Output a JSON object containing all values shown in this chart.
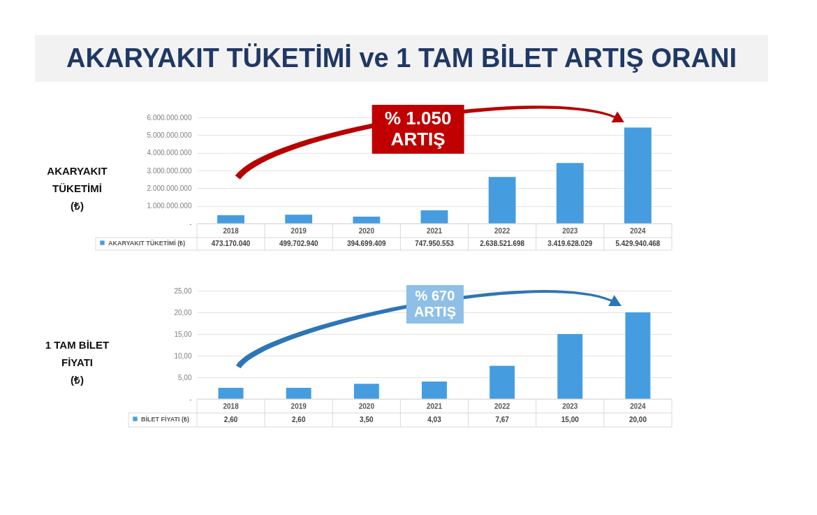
{
  "chart_data": [
    {
      "type": "bar",
      "title": "AKARYAKIT TÜKETİMİ ve 1 TAM BİLET ARTIŞ ORANI",
      "ylabel": "AKARYAKIT\nTÜKETİMİ\n(₺)",
      "categories": [
        "2018",
        "2019",
        "2020",
        "2021",
        "2022",
        "2023",
        "2024"
      ],
      "series": [
        {
          "name": "AKARYAKIT TÜKETİMİ (₺)",
          "color": "#459de0",
          "values": [
            473170040,
            499702940,
            394699409,
            747950553,
            2638521698,
            3419628029,
            5429940468
          ],
          "value_labels": [
            "473.170.040",
            "499.702.940",
            "394.699.409",
            "747.950.553",
            "2.638.521.698",
            "3.419.628.029",
            "5.429.940.468"
          ]
        }
      ],
      "ylim": [
        0,
        6000000000
      ],
      "yticks": [
        {
          "value": 0,
          "label": "-"
        },
        {
          "value": 1000000000,
          "label": "1.000.000.000"
        },
        {
          "value": 2000000000,
          "label": "2.000.000.000"
        },
        {
          "value": 3000000000,
          "label": "3.000.000.000"
        },
        {
          "value": 4000000000,
          "label": "4.000.000.000"
        },
        {
          "value": 5000000000,
          "label": "5.000.000.000"
        },
        {
          "value": 6000000000,
          "label": "6.000.000.000"
        }
      ],
      "grid": "y",
      "legend": "bottom left",
      "annotations": [
        "% 1.050\nARTIŞ"
      ]
    },
    {
      "type": "bar",
      "ylabel": "1 TAM BİLET\nFİYATI\n(₺)",
      "categories": [
        "2018",
        "2019",
        "2020",
        "2021",
        "2022",
        "2023",
        "2024"
      ],
      "series": [
        {
          "name": "BİLET FİYATI (₺)",
          "color": "#459de0",
          "values": [
            2.6,
            2.6,
            3.5,
            4.03,
            7.67,
            15,
            20
          ],
          "value_labels": [
            "2,60",
            "2,60",
            "3,50",
            "4,03",
            "7,67",
            "15,00",
            "20,00"
          ]
        }
      ],
      "ylim": [
        0,
        25
      ],
      "yticks": [
        {
          "value": 0,
          "label": "-"
        },
        {
          "value": 5,
          "label": "5,00"
        },
        {
          "value": 10,
          "label": "10,00"
        },
        {
          "value": 15,
          "label": "15,00"
        },
        {
          "value": 20,
          "label": "20,00"
        },
        {
          "value": 25,
          "label": "25,00"
        }
      ],
      "grid": "y",
      "legend": "bottom left",
      "annotations": [
        "% 670\nARTIŞ"
      ]
    }
  ]
}
